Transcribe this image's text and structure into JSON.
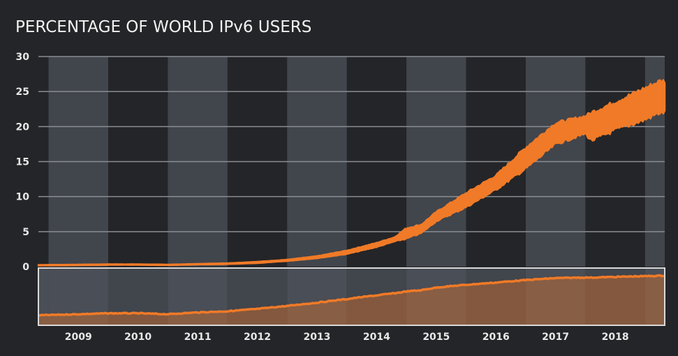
{
  "chart_data": {
    "type": "area",
    "title": "PERCENTAGE OF WORLD IPv6 USERS",
    "xlabel": "",
    "ylabel": "",
    "ylim": [
      0,
      30
    ],
    "yticks": [
      "0",
      "5",
      "10",
      "15",
      "20",
      "25",
      "30"
    ],
    "ytick_values": [
      0,
      5,
      10,
      15,
      20,
      25,
      30
    ],
    "xticks": [
      "2009",
      "2010",
      "2011",
      "2012",
      "2013",
      "2014",
      "2015",
      "2016",
      "2017",
      "2018"
    ],
    "xlim": [
      2008.33,
      2018.83
    ],
    "grid": true,
    "legend": "none",
    "alternating_year_bands": true,
    "has_range_selector": true,
    "series": [
      {
        "name": "IPv6 users (%)",
        "color": "#f07a27",
        "x": [
          2008.33,
          2009.0,
          2009.5,
          2010.0,
          2010.5,
          2011.0,
          2011.5,
          2012.0,
          2012.5,
          2013.0,
          2013.5,
          2014.0,
          2014.3,
          2014.5,
          2014.75,
          2015.0,
          2015.5,
          2016.0,
          2016.5,
          2017.0,
          2017.5,
          2017.6,
          2018.0,
          2018.5,
          2018.75
        ],
        "low": [
          0.15,
          0.2,
          0.25,
          0.25,
          0.2,
          0.3,
          0.35,
          0.5,
          0.8,
          1.2,
          1.8,
          2.8,
          3.6,
          4.0,
          4.8,
          6.5,
          8.5,
          11.0,
          14.0,
          17.5,
          19.0,
          18.0,
          19.5,
          21.0,
          22.0
        ],
        "high": [
          0.25,
          0.3,
          0.35,
          0.35,
          0.3,
          0.4,
          0.5,
          0.7,
          1.0,
          1.5,
          2.3,
          3.4,
          4.2,
          5.5,
          6.0,
          7.8,
          10.5,
          13.0,
          17.0,
          20.5,
          21.5,
          22.0,
          23.5,
          25.5,
          26.5
        ]
      }
    ]
  }
}
